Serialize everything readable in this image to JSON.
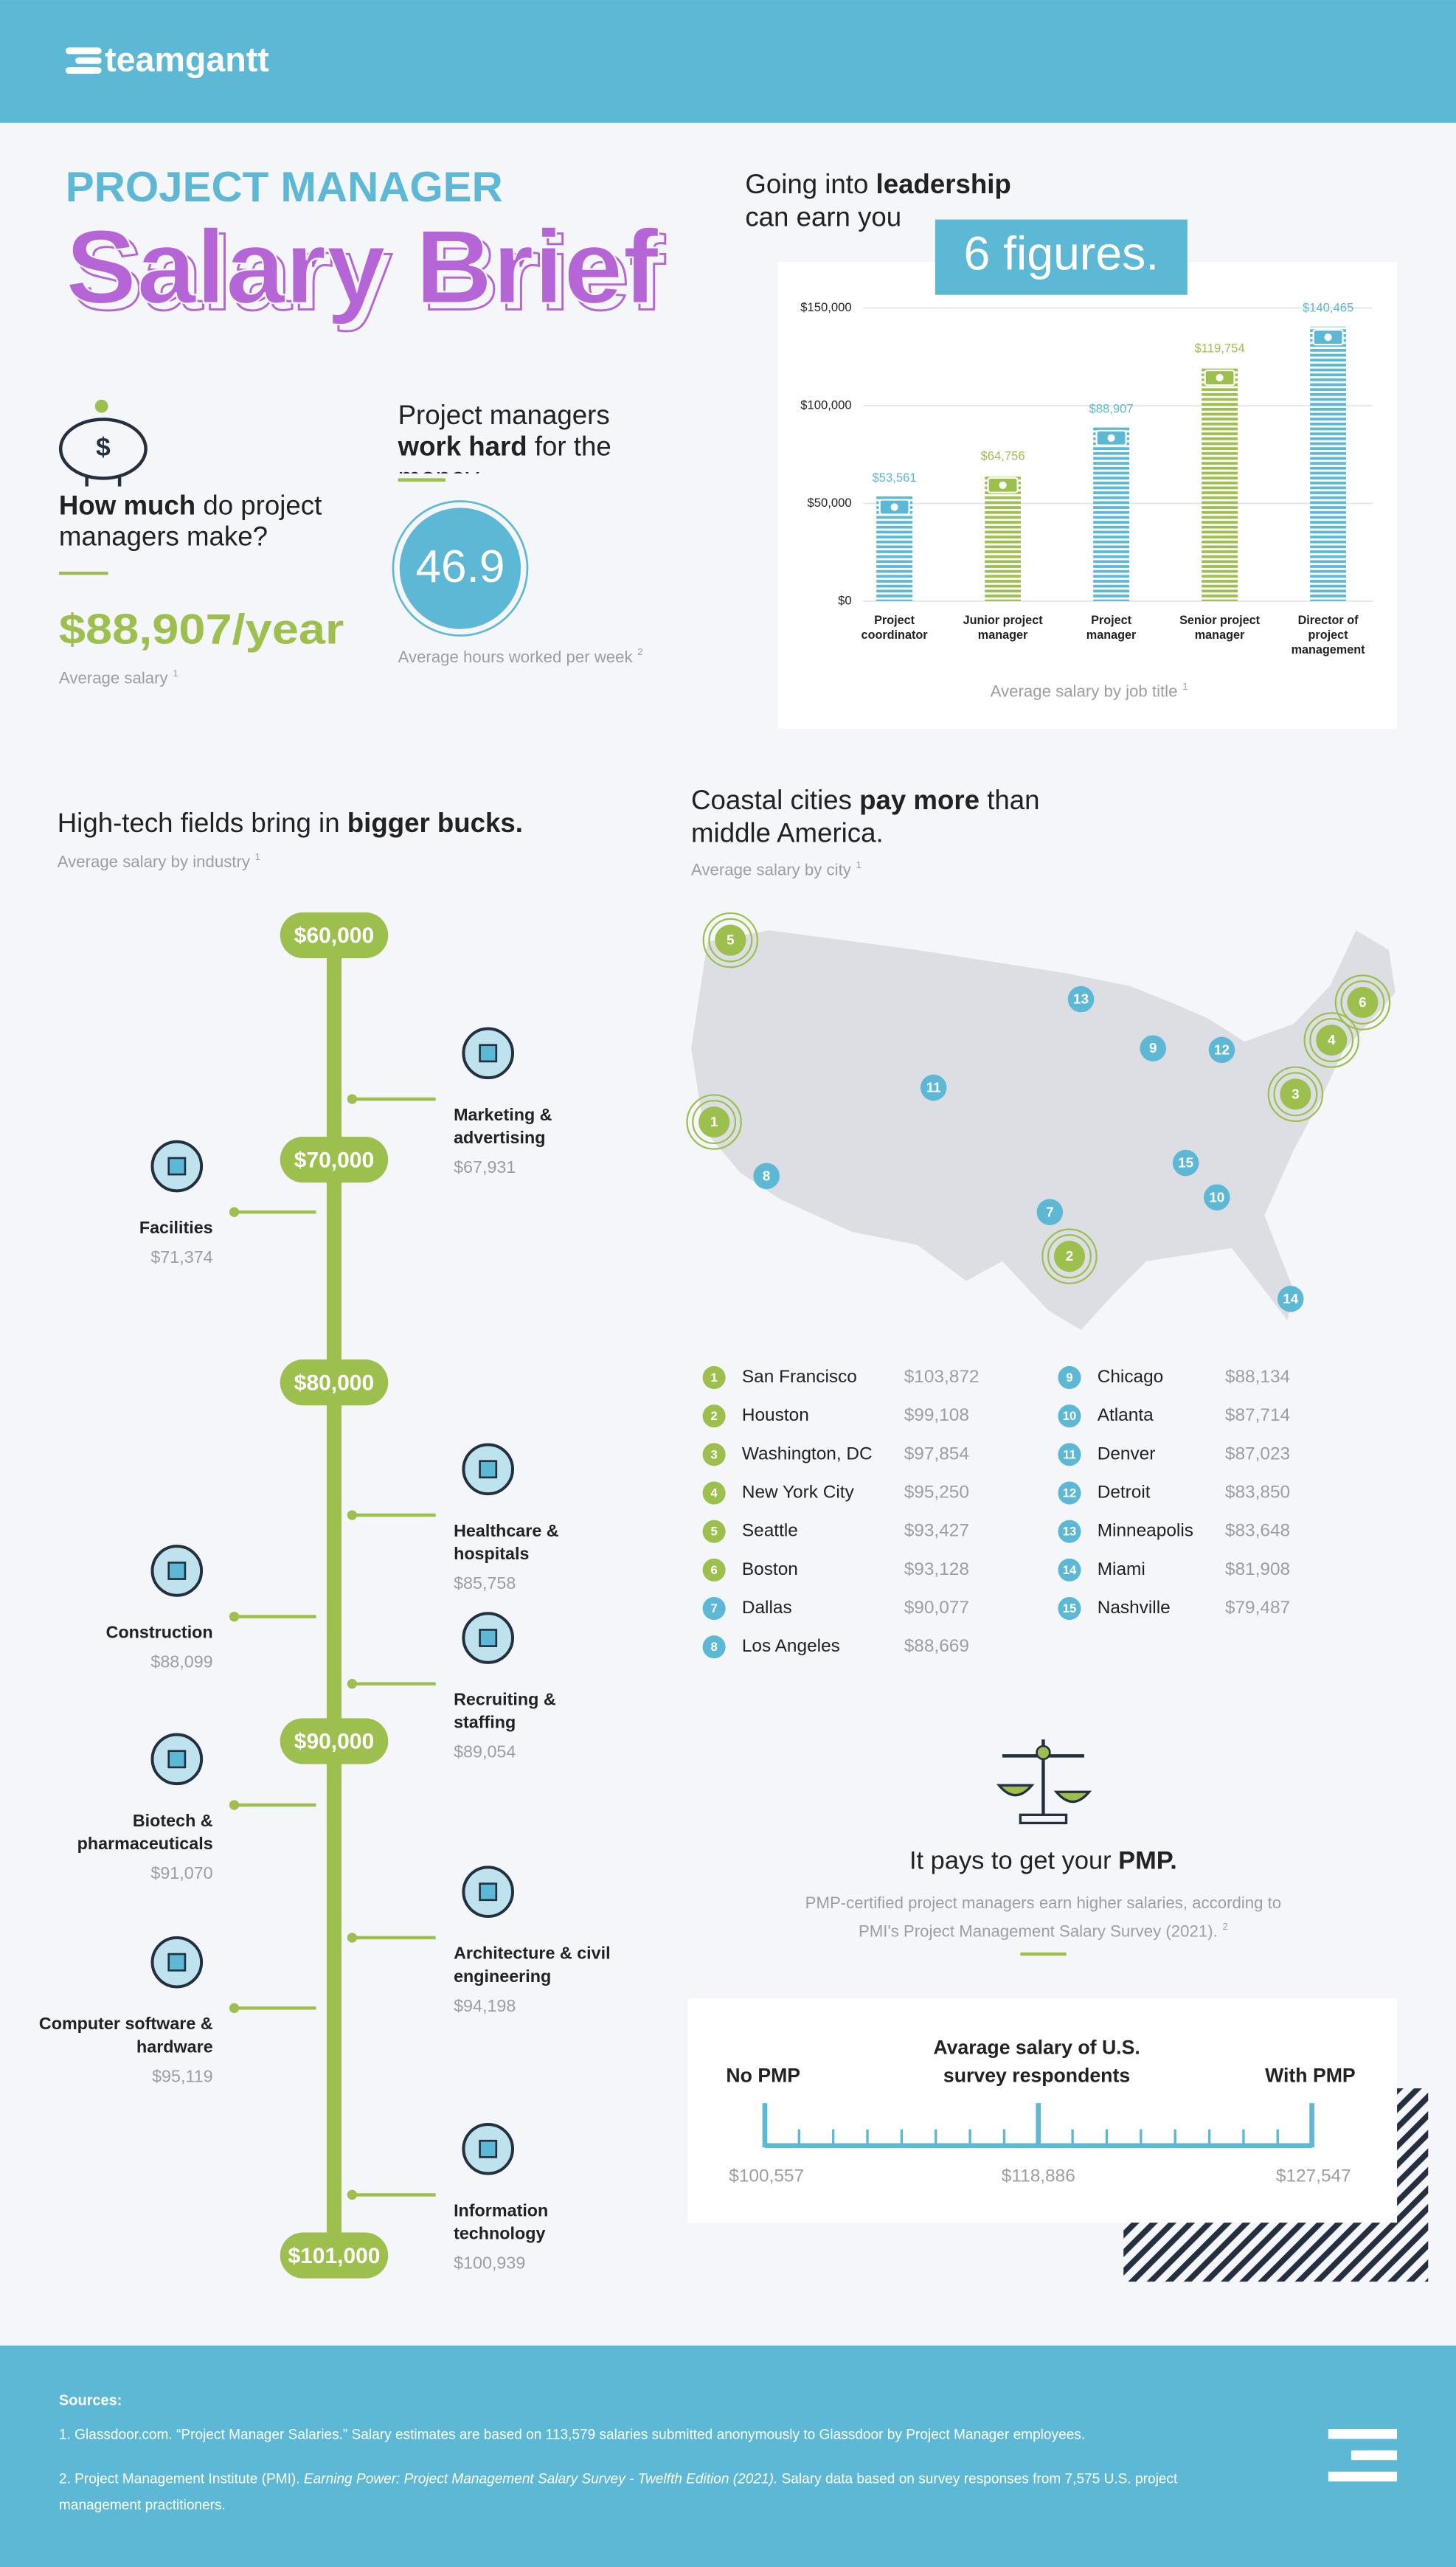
{
  "header": {
    "logo": "teamgantt"
  },
  "title": {
    "kicker": "PROJECT MANAGER",
    "main": "Salary Brief"
  },
  "pay": {
    "question_bold": "How much",
    "question_rest": " do project managers make?",
    "value": "$88,907/year",
    "caption": "Average salary",
    "ref": "1"
  },
  "hours": {
    "heading_pre": "Project managers ",
    "heading_bold": "work hard",
    "heading_post": " for the money.",
    "value": 46.9,
    "caption": "Average hours worked per week",
    "ref": "2"
  },
  "leadership": {
    "heading_pre": "Going into ",
    "heading_bold": "leadership",
    "heading_post": " can earn you",
    "highlight": "6 figures."
  },
  "chart_data": {
    "type": "bar",
    "categories": [
      "Project coordinator",
      "Junior project manager",
      "Project manager",
      "Senior project manager",
      "Director of project management"
    ],
    "values": [
      53561,
      64756,
      88907,
      119754,
      140465
    ],
    "value_labels": [
      "$53,561",
      "$64,756",
      "$88,907",
      "$119,754",
      "$140,465"
    ],
    "colors": [
      "#5cb8d4",
      "#9dbf4e",
      "#5cb8d4",
      "#9dbf4e",
      "#5cb8d4"
    ],
    "ylim": [
      0,
      150000
    ],
    "yticks": [
      {
        "value": 0,
        "label": "$0"
      },
      {
        "value": 50000,
        "label": "$50,000"
      },
      {
        "value": 100000,
        "label": "$100,000"
      },
      {
        "value": 150000,
        "label": "$150,000"
      }
    ],
    "grid": true,
    "caption": "Average salary by job title",
    "caption_ref": "1"
  },
  "industries": {
    "heading_pre": "High-tech fields bring in ",
    "heading_bold": "bigger bucks.",
    "subtitle": "Average salary by industry",
    "subtitle_ref": "1",
    "scale": [
      "$60,000",
      "$70,000",
      "$80,000",
      "$90,000",
      "$101,000"
    ],
    "items": [
      {
        "name": "Marketing & advertising",
        "salary": "$67,931"
      },
      {
        "name": "Facilities",
        "salary": "$71,374"
      },
      {
        "name": "Healthcare & hospitals",
        "salary": "$85,758"
      },
      {
        "name": "Construction",
        "salary": "$88,099"
      },
      {
        "name": "Recruiting & staffing",
        "salary": "$89,054"
      },
      {
        "name": "Biotech & pharmaceuticals",
        "salary": "$91,070"
      },
      {
        "name": "Architecture & civil engineering",
        "salary": "$94,198"
      },
      {
        "name": "Computer software & hardware",
        "salary": "$95,119"
      },
      {
        "name": "Information technology",
        "salary": "$100,939"
      }
    ]
  },
  "cities": {
    "heading_pre": "Coastal cities ",
    "heading_bold": "pay more",
    "heading_post": " than middle America.",
    "subtitle": "Average salary by city",
    "subtitle_ref": "1",
    "items": [
      {
        "rank": 1,
        "name": "San Francisco",
        "salary": "$103,872"
      },
      {
        "rank": 2,
        "name": "Houston",
        "salary": "$99,108"
      },
      {
        "rank": 3,
        "name": "Washington, DC",
        "salary": "$97,854"
      },
      {
        "rank": 4,
        "name": "New York City",
        "salary": "$95,250"
      },
      {
        "rank": 5,
        "name": "Seattle",
        "salary": "$93,427"
      },
      {
        "rank": 6,
        "name": "Boston",
        "salary": "$93,128"
      },
      {
        "rank": 7,
        "name": "Dallas",
        "salary": "$90,077"
      },
      {
        "rank": 8,
        "name": "Los Angeles",
        "salary": "$88,669"
      },
      {
        "rank": 9,
        "name": "Chicago",
        "salary": "$88,134"
      },
      {
        "rank": 10,
        "name": "Atlanta",
        "salary": "$87,714"
      },
      {
        "rank": 11,
        "name": "Denver",
        "salary": "$87,023"
      },
      {
        "rank": 12,
        "name": "Detroit",
        "salary": "$83,850"
      },
      {
        "rank": 13,
        "name": "Minneapolis",
        "salary": "$83,648"
      },
      {
        "rank": 14,
        "name": "Miami",
        "salary": "$81,908"
      },
      {
        "rank": 15,
        "name": "Nashville",
        "salary": "$79,487"
      }
    ]
  },
  "pmp": {
    "heading_pre": "It pays to get your ",
    "heading_bold": "PMP.",
    "text": "PMP-certified project managers earn higher salaries, according to PMI's Project Management Salary Survey (2021).",
    "ref": "2",
    "comparison": [
      {
        "label": "No PMP",
        "salary": "$100,557"
      },
      {
        "label": "Avarage salary of U.S. survey respondents",
        "salary": "$118,886"
      },
      {
        "label": "With PMP",
        "salary": "$127,547"
      }
    ]
  },
  "sources": {
    "title": "Sources:",
    "first": "1. Glassdoor.com. “Project Manager Salaries.” Salary estimates are based on 113,579 salaries submitted anonymously to Glassdoor by Project Manager employees.",
    "second_pre": "2. Project Management Institute (PMI). ",
    "second_italic": "Earning Power: Project Management Salary Survey - Twelfth Edition (2021).",
    "second_post": " Salary data based on survey responses from 7,575 U.S. project management practitioners."
  }
}
